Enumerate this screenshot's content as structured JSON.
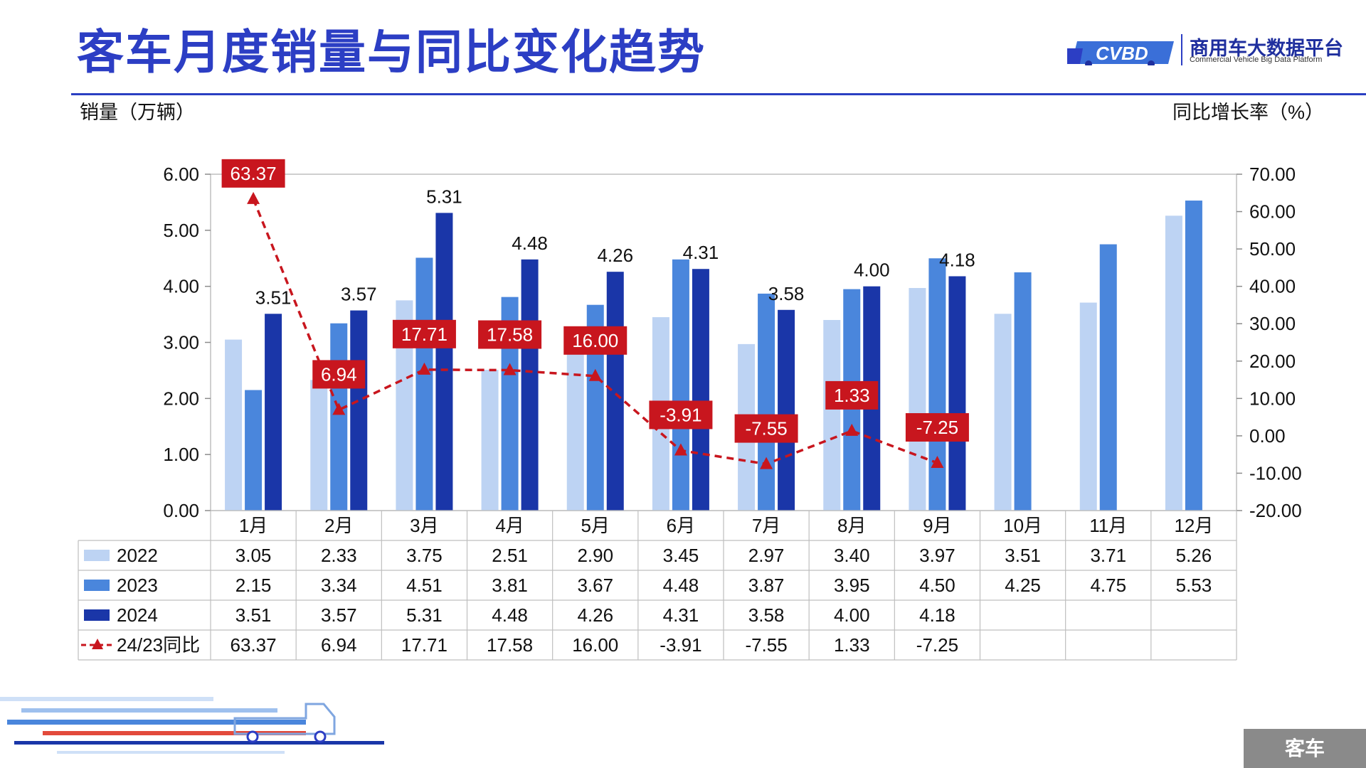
{
  "header": {
    "title": "客车月度销量与同比变化趋势",
    "logo_cn": "商用车大数据平台",
    "logo_en": "Commercial Vehicle Big Data Platform"
  },
  "axes": {
    "left_title": "销量（万辆）",
    "right_title": "同比增长率（%）"
  },
  "corner_tag": "客车",
  "colors": {
    "title": "#2c3ec4",
    "s2022": "#bdd3f3",
    "s2023": "#4a86dc",
    "s2024": "#1a36a8",
    "yoy": "#c8161e",
    "grid": "#d0d0d0"
  },
  "chart_data": {
    "type": "bar",
    "title": "",
    "categories": [
      "1月",
      "2月",
      "3月",
      "4月",
      "5月",
      "6月",
      "7月",
      "8月",
      "9月",
      "10月",
      "11月",
      "12月"
    ],
    "y_left": {
      "label": "销量（万辆）",
      "ylim": [
        0,
        6
      ],
      "ticks": [
        "0.00",
        "1.00",
        "2.00",
        "3.00",
        "4.00",
        "5.00",
        "6.00"
      ]
    },
    "y_right": {
      "label": "同比增长率（%）",
      "ylim": [
        -20,
        70
      ],
      "ticks": [
        "-20.00",
        "-10.00",
        "0.00",
        "10.00",
        "20.00",
        "30.00",
        "40.00",
        "50.00",
        "60.00",
        "70.00"
      ]
    },
    "series": [
      {
        "name": "2022",
        "type": "bar",
        "axis": "left",
        "values": [
          3.05,
          2.33,
          3.75,
          2.51,
          2.9,
          3.45,
          2.97,
          3.4,
          3.97,
          3.51,
          3.71,
          5.26
        ],
        "table_labels": [
          "3.05",
          "2.33",
          "3.75",
          "2.51",
          "2.90",
          "3.45",
          "2.97",
          "3.40",
          "3.97",
          "3.51",
          "3.71",
          "5.26"
        ]
      },
      {
        "name": "2023",
        "type": "bar",
        "axis": "left",
        "values": [
          2.15,
          3.34,
          4.51,
          3.81,
          3.67,
          4.48,
          3.87,
          3.95,
          4.5,
          4.25,
          4.75,
          5.53
        ],
        "table_labels": [
          "2.15",
          "3.34",
          "4.51",
          "3.81",
          "3.67",
          "4.48",
          "3.87",
          "3.95",
          "4.50",
          "4.25",
          "4.75",
          "5.53"
        ]
      },
      {
        "name": "2024",
        "type": "bar",
        "axis": "left",
        "values": [
          3.51,
          3.57,
          5.31,
          4.48,
          4.26,
          4.31,
          3.58,
          4.0,
          4.18,
          null,
          null,
          null
        ],
        "table_labels": [
          "3.51",
          "3.57",
          "5.31",
          "4.48",
          "4.26",
          "4.31",
          "3.58",
          "4.00",
          "4.18",
          "",
          "",
          ""
        ],
        "data_labels": [
          "3.51",
          "3.57",
          "5.31",
          "4.48",
          "4.26",
          "4.31",
          "3.58",
          "4.00",
          "4.18"
        ]
      },
      {
        "name": "24/23同比",
        "type": "line",
        "axis": "right",
        "style": "dashed",
        "marker": "triangle",
        "values": [
          63.37,
          6.94,
          17.71,
          17.58,
          16.0,
          -3.91,
          -7.55,
          1.33,
          -7.25,
          null,
          null,
          null
        ],
        "table_labels": [
          "63.37",
          "6.94",
          "17.71",
          "17.58",
          "16.00",
          "-3.91",
          "-7.55",
          "1.33",
          "-7.25",
          "",
          "",
          ""
        ],
        "data_labels": [
          "63.37",
          "6.94",
          "17.71",
          "17.58",
          "16.00",
          "-3.91",
          "-7.55",
          "1.33",
          "-7.25"
        ]
      }
    ],
    "legend": "data table below chart",
    "grid": false
  }
}
